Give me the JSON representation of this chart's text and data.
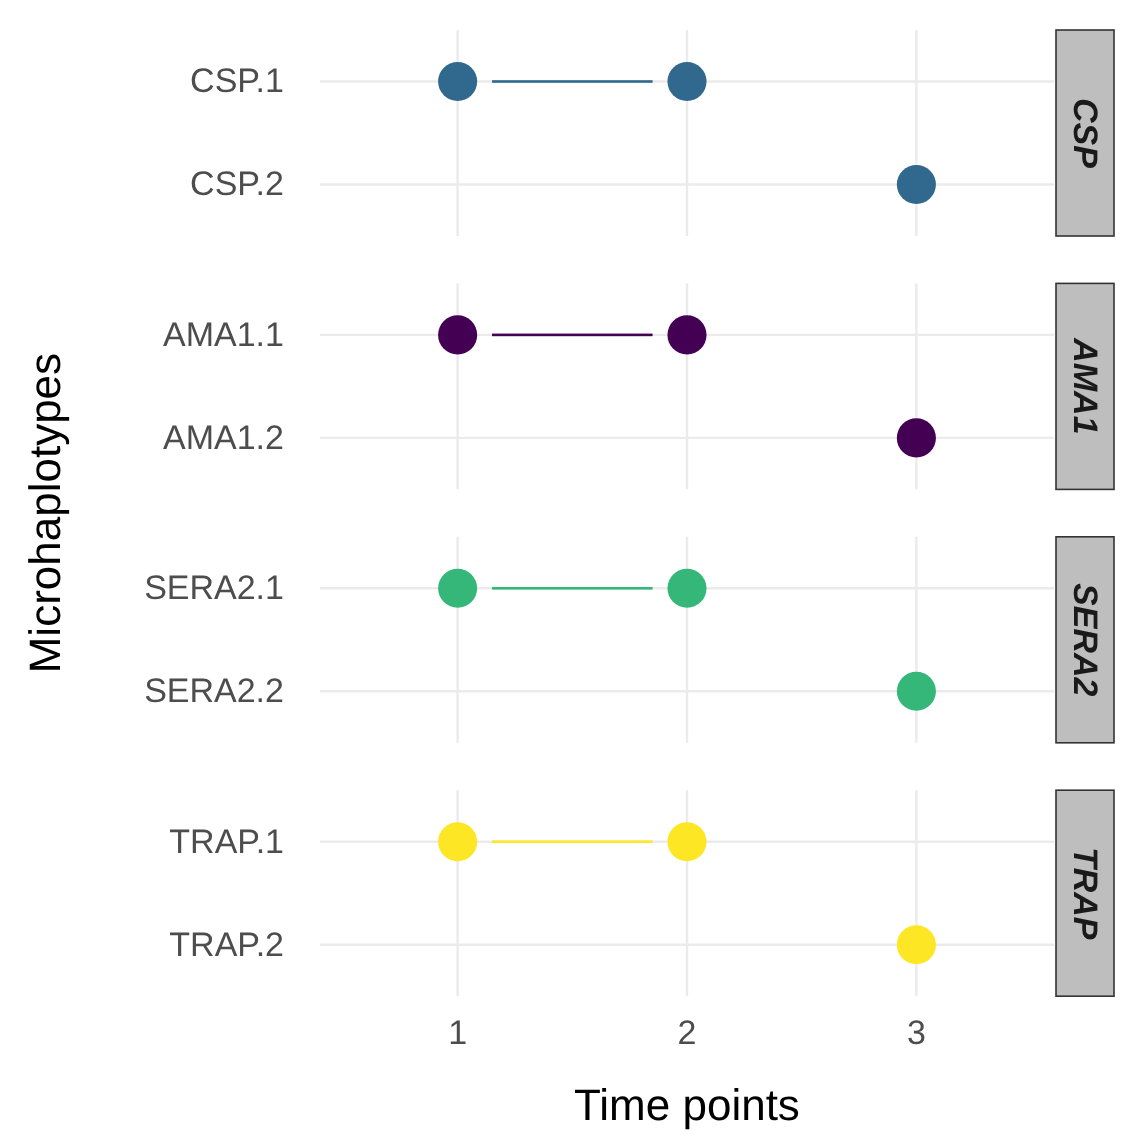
{
  "chart_data": [
    {
      "type": "scatter",
      "title": "CSP",
      "ylabel": "Microhaplotypes",
      "orientation": "horizontal",
      "categories": [
        "CSP.1",
        "CSP.2"
      ],
      "series": [
        {
          "type": "bar",
          "color": "#31688e",
          "base": [
            1.15,
            null
          ],
          "values": [
            0.7,
            null
          ]
        },
        {
          "color": "#31688e",
          "values": [
            1,
            3
          ]
        },
        {
          "color": "#31688e",
          "values": [
            2,
            null
          ]
        }
      ],
      "xlim": [
        0.4,
        3.6
      ],
      "xticks": [
        1,
        2,
        3
      ],
      "tick_labels": "y",
      "grid": true,
      "marker": "circle"
    },
    {
      "type": "scatter",
      "title": "AMA1",
      "orientation": "horizontal",
      "categories": [
        "AMA1.1",
        "AMA1.2"
      ],
      "series": [
        {
          "type": "bar",
          "color": "#440154",
          "base": [
            1.15,
            null
          ],
          "values": [
            0.7,
            null
          ]
        },
        {
          "color": "#440154",
          "values": [
            1,
            3
          ]
        },
        {
          "color": "#440154",
          "values": [
            2,
            null
          ]
        }
      ],
      "xlim": [
        0.4,
        3.6
      ],
      "xticks": [
        1,
        2,
        3
      ],
      "tick_labels": "y",
      "grid": true,
      "marker": "circle"
    },
    {
      "type": "scatter",
      "title": "SERA2",
      "orientation": "horizontal",
      "categories": [
        "SERA2.1",
        "SERA2.2"
      ],
      "series": [
        {
          "type": "bar",
          "color": "#35b779",
          "base": [
            1.15,
            null
          ],
          "values": [
            0.7,
            null
          ]
        },
        {
          "color": "#35b779",
          "values": [
            1,
            3
          ]
        },
        {
          "color": "#35b779",
          "values": [
            2,
            null
          ]
        }
      ],
      "xlim": [
        0.4,
        3.6
      ],
      "xticks": [
        1,
        2,
        3
      ],
      "tick_labels": "y",
      "grid": true,
      "marker": "circle"
    },
    {
      "type": "scatter",
      "title": "TRAP",
      "xlabel": "Time points",
      "orientation": "horizontal",
      "categories": [
        "TRAP.1",
        "TRAP.2"
      ],
      "series": [
        {
          "type": "bar",
          "color": "#fde725",
          "base": [
            1.15,
            null
          ],
          "values": [
            0.7,
            null
          ]
        },
        {
          "color": "#fde725",
          "values": [
            1,
            3
          ]
        },
        {
          "color": "#fde725",
          "values": [
            2,
            null
          ]
        }
      ],
      "xlim": [
        0.4,
        3.6
      ],
      "xticks": [
        1,
        2,
        3
      ],
      "grid": true,
      "marker": "circle"
    }
  ]
}
